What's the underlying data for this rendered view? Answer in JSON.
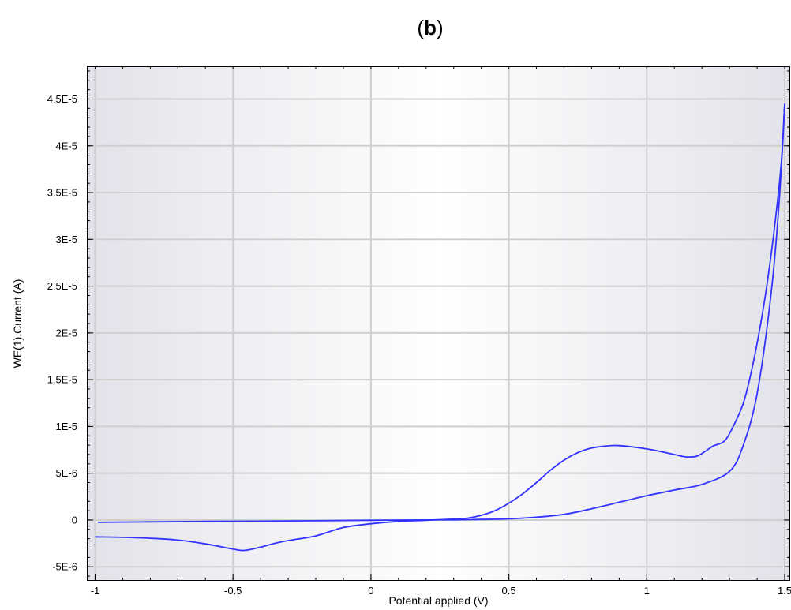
{
  "panel_label": {
    "open": "(",
    "letter": "b",
    "close": ")"
  },
  "chart_data": {
    "type": "line",
    "xlabel": "Potential applied (V)",
    "ylabel": "WE(1).Current (A)",
    "xlim": [
      -1.03,
      1.52
    ],
    "ylim": [
      -6.5e-06,
      4.85e-05
    ],
    "x_ticks": [
      {
        "value": -1,
        "label": "-1"
      },
      {
        "value": -0.5,
        "label": "-0.5"
      },
      {
        "value": 0,
        "label": "0"
      },
      {
        "value": 0.5,
        "label": "0.5"
      },
      {
        "value": 1,
        "label": "1"
      },
      {
        "value": 1.5,
        "label": "1.5"
      }
    ],
    "y_ticks": [
      {
        "value": -5e-06,
        "label": "-5E-6"
      },
      {
        "value": 0,
        "label": "0"
      },
      {
        "value": 5e-06,
        "label": "5E-6"
      },
      {
        "value": 1e-05,
        "label": "1E-5"
      },
      {
        "value": 1.5e-05,
        "label": "1.5E-5"
      },
      {
        "value": 2e-05,
        "label": "2E-5"
      },
      {
        "value": 2.5e-05,
        "label": "2.5E-5"
      },
      {
        "value": 3e-05,
        "label": "3E-5"
      },
      {
        "value": 3.5e-05,
        "label": "3.5E-5"
      },
      {
        "value": 4e-05,
        "label": "4E-5"
      },
      {
        "value": 4.5e-05,
        "label": "4.5E-5"
      }
    ],
    "grid": true,
    "line_color": "#3333ff",
    "series": [
      {
        "x": [
          -0.99,
          -0.8,
          -0.6,
          -0.4,
          -0.2,
          0,
          0.2,
          0.3,
          0.4,
          0.5,
          0.6,
          0.7,
          0.8,
          0.9,
          1.0,
          1.1,
          1.2,
          1.3,
          1.35,
          1.4,
          1.45,
          1.48,
          1.5
        ],
        "y": [
          -2.5e-07,
          -2e-07,
          -1.5e-07,
          -1.2e-07,
          -8e-08,
          -3e-08,
          0,
          2e-08,
          6e-08,
          1.2e-07,
          3e-07,
          6e-07,
          1.2e-06,
          1.9e-06,
          2.6e-06,
          3.2e-06,
          3.8e-06,
          5.2e-06,
          8e-06,
          1.35e-05,
          2.4e-05,
          3.4e-05,
          4.45e-05
        ]
      },
      {
        "x": [
          1.5,
          1.49,
          1.47,
          1.44,
          1.41,
          1.38,
          1.35,
          1.31,
          1.28,
          1.24,
          1.21,
          1.18,
          1.14,
          1.1,
          1.0,
          0.9,
          0.85,
          0.8,
          0.75,
          0.7,
          0.65,
          0.6,
          0.55,
          0.5,
          0.45,
          0.4,
          0.35,
          0.3,
          0.2,
          0.1,
          0,
          -0.1,
          -0.2,
          -0.3,
          -0.35,
          -0.4,
          -0.46,
          -0.5,
          -0.6,
          -0.7,
          -0.8,
          -0.9,
          -1.0
        ],
        "y": [
          4.45e-05,
          3.9e-05,
          3.3e-05,
          2.6e-05,
          2.05e-05,
          1.6e-05,
          1.25e-05,
          9.8e-06,
          8.4e-06,
          7.9e-06,
          7.3e-06,
          6.8e-06,
          6.75e-06,
          7e-06,
          7.6e-06,
          7.95e-06,
          7.9e-06,
          7.7e-06,
          7.2e-06,
          6.4e-06,
          5.3e-06,
          4e-06,
          2.8e-06,
          1.8e-06,
          1e-06,
          5e-07,
          2e-07,
          1e-07,
          -3e-08,
          -1.5e-07,
          -4e-07,
          -8e-07,
          -1.7e-06,
          -2.2e-06,
          -2.5e-06,
          -2.9e-06,
          -3.25e-06,
          -3.1e-06,
          -2.55e-06,
          -2.15e-06,
          -1.95e-06,
          -1.85e-06,
          -1.8e-06
        ]
      }
    ]
  }
}
